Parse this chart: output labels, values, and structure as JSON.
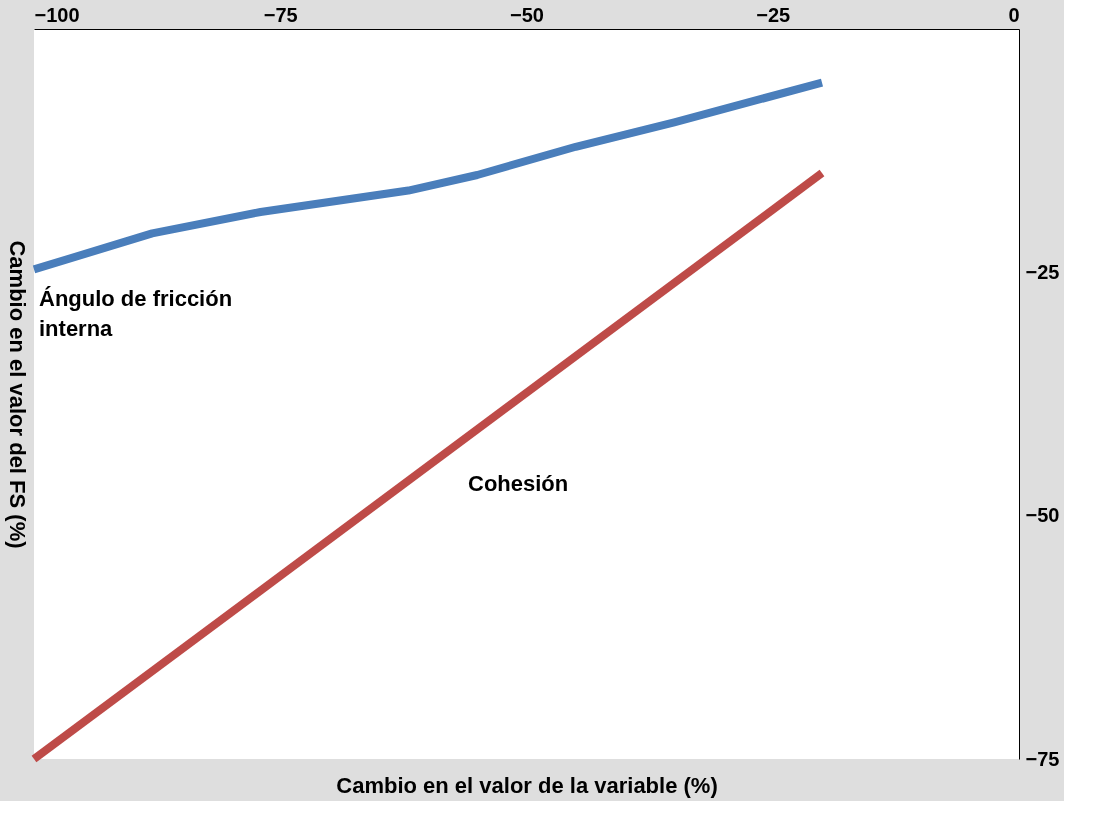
{
  "chart_data": {
    "type": "line",
    "xlabel": "Cambio en el valor de la variable (%)",
    "ylabel": "Cambio en el valor del FS (%)",
    "xlim": [
      -100,
      0
    ],
    "xticks": [
      -100,
      -75,
      -50,
      -25,
      0
    ],
    "ylim": [
      -75,
      0
    ],
    "yticks": [
      -25,
      -50,
      -75
    ],
    "grid": false,
    "legend": false,
    "marker": "none",
    "line_style": "solid",
    "series": [
      {
        "name": "Ángulo de fricción\ninterna",
        "color": "#4a7ebb",
        "x": [
          -100,
          -88,
          -77,
          -62,
          -55,
          -45,
          -35,
          -20
        ],
        "values": [
          -24.7,
          -21,
          -18.8,
          -16.6,
          -15,
          -12.1,
          -9.6,
          -5.5
        ]
      },
      {
        "name": "Cohesión",
        "color": "#be4b48",
        "x": [
          -100,
          -20
        ],
        "values": [
          -75,
          -14.8
        ]
      }
    ]
  }
}
